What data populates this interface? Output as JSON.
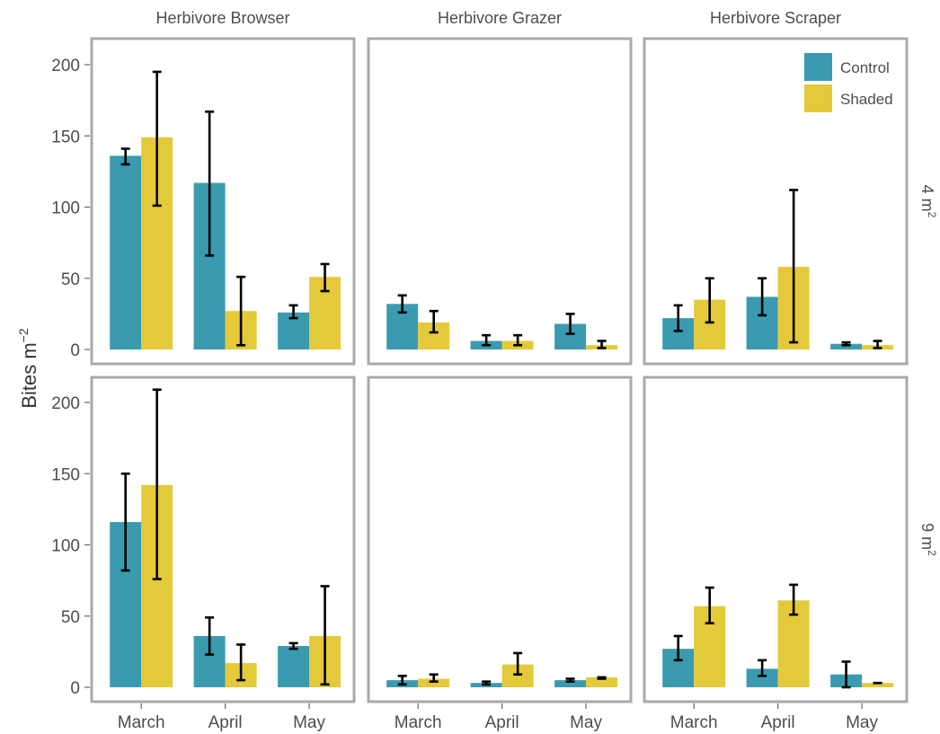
{
  "chart_data": {
    "type": "bar",
    "ylabel": "Bites m",
    "ylabel_superscript": "−2",
    "ylim": [
      0,
      220
    ],
    "yticks": [
      "0",
      "50",
      "100",
      "150",
      "200"
    ],
    "categories": [
      "March",
      "April",
      "May"
    ],
    "col_facets": [
      "Herbivore Browser",
      "Herbivore Grazer",
      "Herbivore Scraper"
    ],
    "row_facets": [
      {
        "label": "4 m",
        "sup": "2"
      },
      {
        "label": "9 m",
        "sup": "2"
      }
    ],
    "legend": {
      "position": "top-right",
      "entries": [
        {
          "name": "Control",
          "color": "#3A9BB0"
        },
        {
          "name": "Shaded",
          "color": "#E4C93A"
        }
      ]
    },
    "panels": [
      {
        "row": 0,
        "col": 0,
        "series": [
          {
            "name": "Control",
            "values": [
              136,
              117,
              26
            ],
            "err_low": [
              130,
              66,
              22
            ],
            "err_high": [
              141,
              167,
              31
            ]
          },
          {
            "name": "Shaded",
            "values": [
              149,
              27,
              51
            ],
            "err_low": [
              101,
              3,
              41
            ],
            "err_high": [
              195,
              51,
              60
            ]
          }
        ]
      },
      {
        "row": 0,
        "col": 1,
        "series": [
          {
            "name": "Control",
            "values": [
              32,
              6,
              18
            ],
            "err_low": [
              26,
              3,
              11
            ],
            "err_high": [
              38,
              10,
              25
            ]
          },
          {
            "name": "Shaded",
            "values": [
              19,
              6,
              3
            ],
            "err_low": [
              12,
              3,
              1
            ],
            "err_high": [
              27,
              10,
              6
            ]
          }
        ]
      },
      {
        "row": 0,
        "col": 2,
        "series": [
          {
            "name": "Control",
            "values": [
              22,
              37,
              4
            ],
            "err_low": [
              13,
              24,
              3
            ],
            "err_high": [
              31,
              50,
              5
            ]
          },
          {
            "name": "Shaded",
            "values": [
              35,
              58,
              3
            ],
            "err_low": [
              19,
              5,
              1
            ],
            "err_high": [
              50,
              112,
              6
            ]
          }
        ]
      },
      {
        "row": 1,
        "col": 0,
        "series": [
          {
            "name": "Control",
            "values": [
              116,
              36,
              29
            ],
            "err_low": [
              82,
              23,
              27
            ],
            "err_high": [
              150,
              49,
              31
            ]
          },
          {
            "name": "Shaded",
            "values": [
              142,
              17,
              36
            ],
            "err_low": [
              76,
              5,
              2
            ],
            "err_high": [
              209,
              30,
              71
            ]
          }
        ]
      },
      {
        "row": 1,
        "col": 1,
        "series": [
          {
            "name": "Control",
            "values": [
              5,
              3,
              5
            ],
            "err_low": [
              2,
              2,
              4
            ],
            "err_high": [
              8,
              4,
              6
            ]
          },
          {
            "name": "Shaded",
            "values": [
              6,
              16,
              7
            ],
            "err_low": [
              4,
              9,
              6
            ],
            "err_high": [
              9,
              24,
              7
            ]
          }
        ]
      },
      {
        "row": 1,
        "col": 2,
        "series": [
          {
            "name": "Control",
            "values": [
              27,
              13,
              9
            ],
            "err_low": [
              19,
              8,
              0
            ],
            "err_high": [
              36,
              19,
              18
            ]
          },
          {
            "name": "Shaded",
            "values": [
              57,
              61,
              3
            ],
            "err_low": [
              45,
              51,
              3
            ],
            "err_high": [
              70,
              72,
              3
            ]
          }
        ]
      }
    ]
  }
}
